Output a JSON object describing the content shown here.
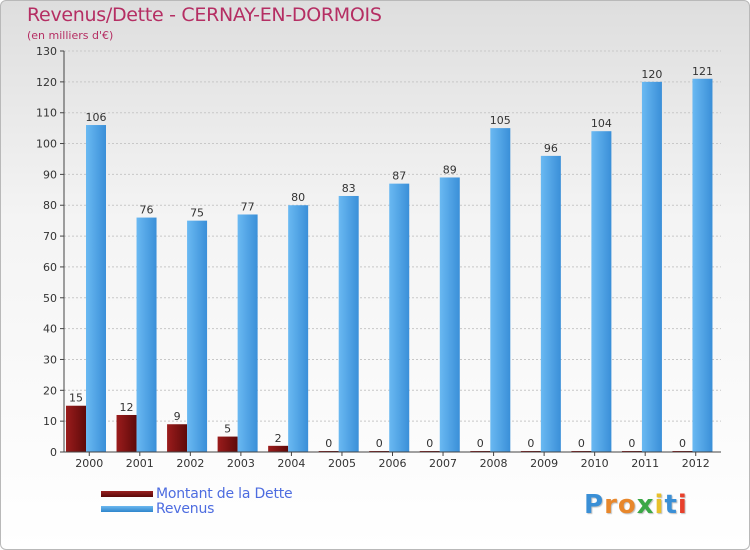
{
  "chart_data": {
    "type": "bar",
    "title": "Revenus/Dette - CERNAY-EN-DORMOIS",
    "subtitle": "(en milliers d'€)",
    "categories": [
      "2000",
      "2001",
      "2002",
      "2003",
      "2004",
      "2005",
      "2006",
      "2007",
      "2008",
      "2009",
      "2010",
      "2011",
      "2012"
    ],
    "series": [
      {
        "name": "Montant de la Dette",
        "color": "#7a0d0d",
        "values": [
          15,
          12,
          9,
          5,
          2,
          0,
          0,
          0,
          0,
          0,
          0,
          0,
          0
        ]
      },
      {
        "name": "Revenus",
        "color": "#4ea3e6",
        "values": [
          106,
          76,
          75,
          77,
          80,
          83,
          87,
          89,
          105,
          96,
          104,
          120,
          121
        ]
      }
    ],
    "ylim": [
      0,
      130
    ],
    "yticks": [
      0,
      10,
      20,
      30,
      40,
      50,
      60,
      70,
      80,
      90,
      100,
      110,
      120,
      130
    ],
    "grid": true,
    "legend_position": "bottom-left"
  },
  "logo": {
    "letters": [
      "P",
      "r",
      "o",
      "x",
      "i",
      "t",
      "i"
    ],
    "colors": [
      "#3a8fd6",
      "#e8872b",
      "#e8872b",
      "#3aa845",
      "#e8c02b",
      "#3a8fd6",
      "#e8402b"
    ]
  }
}
